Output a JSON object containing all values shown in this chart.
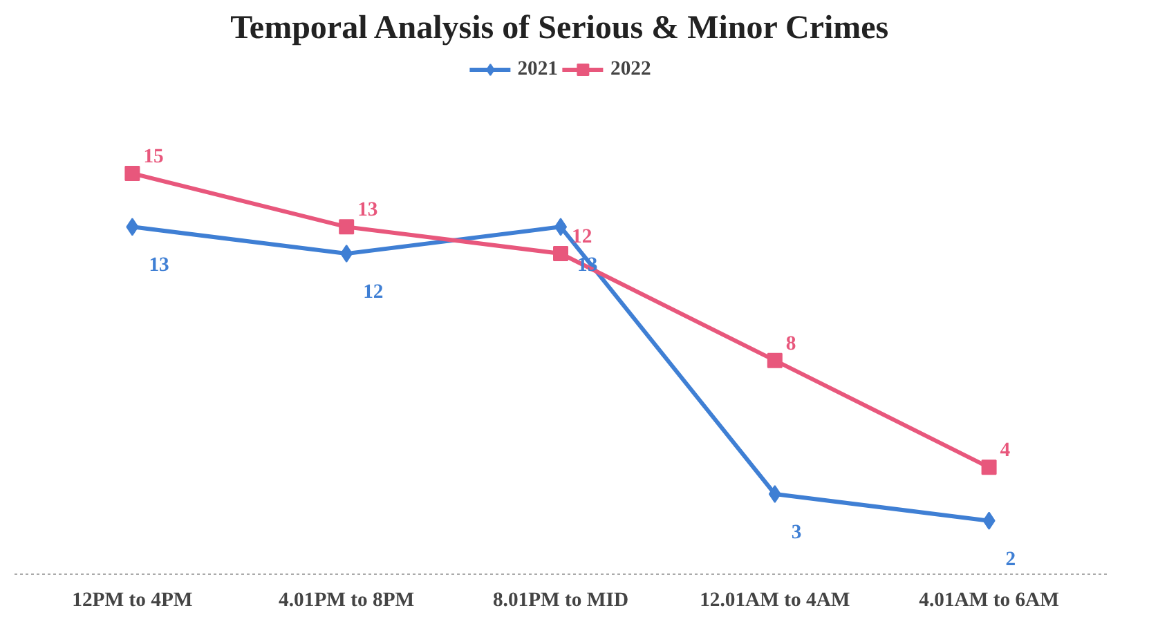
{
  "chart_data": {
    "type": "line",
    "title": "Temporal Analysis of Serious & Minor Crimes",
    "categories": [
      "12PM to 4PM",
      "4.01PM to 8PM",
      "8.01PM to MID",
      "12.01AM to 4AM",
      "4.01AM to 6AM"
    ],
    "series": [
      {
        "name": "2021",
        "color": "#3f7fd4",
        "values": [
          13,
          12,
          13,
          3,
          2
        ],
        "marker": "diamond"
      },
      {
        "name": "2022",
        "color": "#e8577c",
        "values": [
          15,
          13,
          12,
          8,
          4
        ],
        "marker": "square"
      }
    ],
    "data_labels": true,
    "legend": "top",
    "grid": false
  }
}
